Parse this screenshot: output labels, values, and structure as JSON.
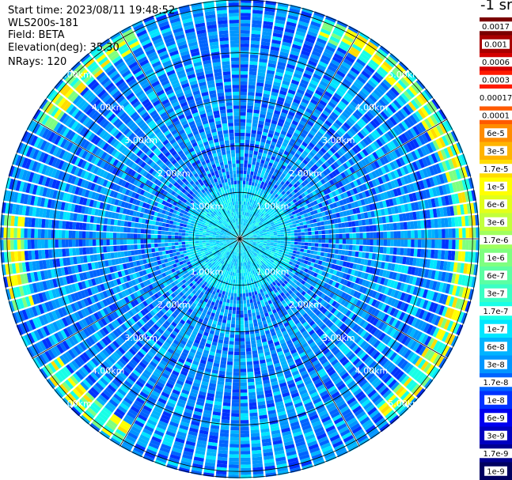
{
  "info": {
    "start_time": "Start time: 2023/08/11 19:48:52",
    "instrument": "WLS200s-181",
    "field": "Field: BETA",
    "elevation": "Elevation(deg): 35.30",
    "nrays": "NRays: 120"
  },
  "colorbar": {
    "unit_label": "-1 sr",
    "levels": [
      {
        "label": "0.0017",
        "color": "#7a0000"
      },
      {
        "label": "0.001",
        "color": "#a80000"
      },
      {
        "label": "0.0006",
        "color": "#d40000"
      },
      {
        "label": "0.0003",
        "color": "#ff1a00"
      },
      {
        "label": "0.00017",
        "color": "#ffffff"
      },
      {
        "label": "0.0001",
        "color": "#ff5a00"
      },
      {
        "label": "6e-5",
        "color": "#ff8c00"
      },
      {
        "label": "3e-5",
        "color": "#ffb400"
      },
      {
        "label": "1.7e-5",
        "color": "#ffdc00"
      },
      {
        "label": "1e-5",
        "color": "#ffff00"
      },
      {
        "label": "6e-6",
        "color": "#e2ff1a"
      },
      {
        "label": "3e-6",
        "color": "#c2ff3c"
      },
      {
        "label": "1.7e-6",
        "color": "#a0ff5e"
      },
      {
        "label": "1e-6",
        "color": "#7eff80"
      },
      {
        "label": "6e-7",
        "color": "#5cffa2"
      },
      {
        "label": "3e-7",
        "color": "#3affc4"
      },
      {
        "label": "1.7e-7",
        "color": "#18ffe6"
      },
      {
        "label": "1e-7",
        "color": "#00e6ff"
      },
      {
        "label": "6e-8",
        "color": "#00b4ff"
      },
      {
        "label": "3e-8",
        "color": "#0096ff"
      },
      {
        "label": "1.7e-8",
        "color": "#0064ff"
      },
      {
        "label": "1e-8",
        "color": "#0032ff"
      },
      {
        "label": "6e-9",
        "color": "#0000f0"
      },
      {
        "label": "3e-9",
        "color": "#0000c0"
      },
      {
        "label": "1.7e-9",
        "color": "#000090"
      },
      {
        "label": "1e-9",
        "color": "#000060"
      }
    ]
  },
  "chart_data": {
    "type": "heatmap",
    "projection": "polar (PPI scan)",
    "title": "",
    "nrays": 120,
    "range_rings_km": [
      {
        "value": 1.0,
        "label": "1.00km"
      },
      {
        "value": 2.0,
        "label": "2.00km"
      },
      {
        "value": 3.0,
        "label": "3.00km"
      },
      {
        "value": 4.0,
        "label": "4.00km"
      },
      {
        "value": 5.0,
        "label": "5.00km"
      }
    ],
    "max_range_km": 5.15,
    "azimuth_gridlines_deg": [
      0,
      30,
      60,
      90,
      120,
      150,
      180,
      210,
      240,
      270,
      300,
      330
    ],
    "background_level": "3e-8",
    "enhanced_layer": {
      "range_km": [
        4.6,
        5.1
      ],
      "levels": [
        "1e-6",
        "1e-5",
        "0.0001"
      ],
      "description_azimuth_deg": [
        20,
        140
      ]
    },
    "colorscale": "log, 1e-9 to 0.0017 sr-1"
  }
}
